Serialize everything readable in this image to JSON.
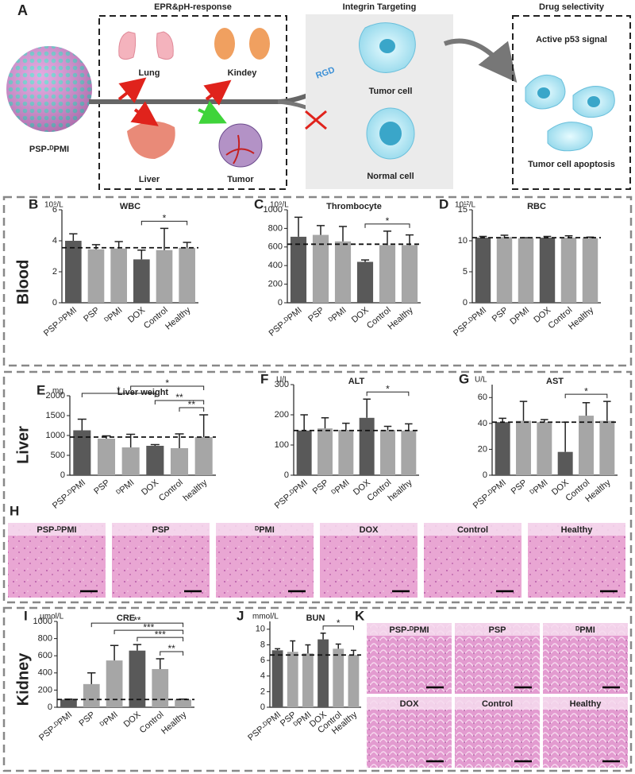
{
  "panel_a": {
    "letter": "A",
    "nanoparticle": "PSP-ᴰPMI",
    "boxes": [
      {
        "title": "EPR&pH-response",
        "labels": [
          "Lung",
          "Kindey",
          "Liver",
          "Tumor"
        ]
      },
      {
        "title": "Integrin Targeting",
        "labels": [
          "RGD",
          "Tumor cell",
          "Normal cell"
        ]
      },
      {
        "title": "Drug selectivity",
        "labels": [
          "Active p53 signal",
          "Tumor cell apoptosis"
        ]
      }
    ]
  },
  "sections": [
    "Blood",
    "Liver",
    "Kidney"
  ],
  "chart_data": [
    {
      "type": "bar",
      "letter": "B",
      "title": "WBC",
      "unit": "10⁹/L",
      "categories": [
        "PSP-ᴰPMI",
        "PSP",
        "ᴰPMI",
        "DOX",
        "Control",
        "Healthy"
      ],
      "values": [
        4.0,
        3.45,
        3.5,
        2.8,
        3.4,
        3.55
      ],
      "errors": [
        0.45,
        0.3,
        0.45,
        0.6,
        1.4,
        0.35
      ],
      "colors": [
        "#595959",
        "#a6a6a6",
        "#a6a6a6",
        "#595959",
        "#a6a6a6",
        "#a6a6a6"
      ],
      "reference": 3.55,
      "ylim": [
        0,
        6
      ],
      "yticks": [
        0,
        2,
        4,
        6
      ],
      "significance": [
        {
          "between": [
            "DOX",
            "Healthy"
          ],
          "label": "*"
        }
      ]
    },
    {
      "type": "bar",
      "letter": "C",
      "title": "Thrombocyte",
      "unit": "10⁹/L",
      "categories": [
        "PSP-ᴰPMI",
        "PSP",
        "ᴰPMI",
        "DOX",
        "Control",
        "Healthy"
      ],
      "values": [
        710,
        730,
        660,
        440,
        620,
        620
      ],
      "errors": [
        210,
        100,
        160,
        20,
        150,
        110
      ],
      "colors": [
        "#595959",
        "#a6a6a6",
        "#a6a6a6",
        "#595959",
        "#a6a6a6",
        "#a6a6a6"
      ],
      "reference": 630,
      "ylim": [
        0,
        1000
      ],
      "yticks": [
        0,
        200,
        400,
        600,
        800,
        1000
      ],
      "significance": [
        {
          "between": [
            "DOX",
            "Healthy"
          ],
          "label": "*"
        }
      ]
    },
    {
      "type": "bar",
      "letter": "D",
      "title": "RBC",
      "unit": "10¹²/L",
      "categories": [
        "PSP-ᴰPMI",
        "PSP",
        "DPMI",
        "DOX",
        "Control",
        "Healthy"
      ],
      "values": [
        10.5,
        10.6,
        10.4,
        10.5,
        10.5,
        10.4
      ],
      "errors": [
        0.2,
        0.3,
        0.1,
        0.2,
        0.3,
        0.2
      ],
      "colors": [
        "#595959",
        "#a6a6a6",
        "#a6a6a6",
        "#595959",
        "#a6a6a6",
        "#a6a6a6"
      ],
      "reference": 10.5,
      "ylim": [
        0,
        15
      ],
      "yticks": [
        0,
        5,
        10,
        15
      ],
      "significance": []
    },
    {
      "type": "bar",
      "letter": "E",
      "title": "Liver weight",
      "unit": "mg",
      "categories": [
        "PSP-ᴰPMI",
        "PSP",
        "ᴰPMI",
        "DOX",
        "Control",
        "healthy"
      ],
      "values": [
        1130,
        920,
        700,
        740,
        680,
        960
      ],
      "errors": [
        280,
        70,
        330,
        30,
        360,
        560
      ],
      "colors": [
        "#595959",
        "#a6a6a6",
        "#a6a6a6",
        "#595959",
        "#a6a6a6",
        "#a6a6a6"
      ],
      "reference": 960,
      "ylim": [
        0,
        2000
      ],
      "yticks": [
        0,
        500,
        1000,
        1500,
        2000
      ],
      "significance": [
        {
          "between": [
            "PSP-ᴰPMI",
            "DOX"
          ],
          "label": "*"
        },
        {
          "between": [
            "ᴰPMI",
            "healthy"
          ],
          "label": "*"
        },
        {
          "between": [
            "DOX",
            "healthy"
          ],
          "label": "**"
        },
        {
          "between": [
            "Control",
            "healthy"
          ],
          "label": "**"
        }
      ]
    },
    {
      "type": "bar",
      "letter": "F",
      "title": "ALT",
      "unit": "U/L",
      "categories": [
        "PSP-ᴰPMI",
        "PSP",
        "ᴰPMI",
        "DOX",
        "Control",
        "healthy"
      ],
      "values": [
        148,
        155,
        150,
        190,
        150,
        148
      ],
      "errors": [
        52,
        35,
        22,
        62,
        12,
        22
      ],
      "colors": [
        "#595959",
        "#a6a6a6",
        "#a6a6a6",
        "#595959",
        "#a6a6a6",
        "#a6a6a6"
      ],
      "reference": 148,
      "ylim": [
        0,
        300
      ],
      "yticks": [
        0,
        100,
        200,
        300
      ],
      "significance": [
        {
          "between": [
            "DOX",
            "healthy"
          ],
          "label": "*"
        }
      ]
    },
    {
      "type": "bar",
      "letter": "G",
      "title": "AST",
      "unit": "U/L",
      "categories": [
        "PSP-ᴰPMI",
        "PSP",
        "ᴰPMI",
        "DOX",
        "Control",
        "Healthy"
      ],
      "values": [
        41,
        42,
        41,
        18,
        46,
        42
      ],
      "errors": [
        3,
        15,
        2,
        23,
        10,
        15
      ],
      "colors": [
        "#595959",
        "#a6a6a6",
        "#a6a6a6",
        "#595959",
        "#a6a6a6",
        "#a6a6a6"
      ],
      "reference": 41,
      "ylim": [
        0,
        70
      ],
      "yticks": [
        0,
        20,
        40,
        60
      ],
      "significance": [
        {
          "between": [
            "DOX",
            "Healthy"
          ],
          "label": "*"
        }
      ]
    },
    {
      "type": "bar",
      "letter": "I",
      "title": "CRE",
      "unit": "μmol/L",
      "categories": [
        "PSP-ᴰPMI",
        "PSP",
        "ᴰPMI",
        "DOX",
        "Control",
        "Healthy"
      ],
      "values": [
        90,
        270,
        545,
        660,
        445,
        90
      ],
      "errors": [
        5,
        130,
        175,
        70,
        120,
        5
      ],
      "colors": [
        "#595959",
        "#a6a6a6",
        "#a6a6a6",
        "#595959",
        "#a6a6a6",
        "#a6a6a6"
      ],
      "reference": 90,
      "ylim": [
        0,
        1000
      ],
      "yticks": [
        0,
        200,
        400,
        600,
        800,
        1000
      ],
      "significance": [
        {
          "between": [
            "PSP",
            "Healthy"
          ],
          "label": "**"
        },
        {
          "between": [
            "ᴰPMI",
            "Healthy"
          ],
          "label": "***"
        },
        {
          "between": [
            "DOX",
            "Healthy"
          ],
          "label": "***"
        },
        {
          "between": [
            "Control",
            "Healthy"
          ],
          "label": "**"
        }
      ]
    },
    {
      "type": "bar",
      "letter": "J",
      "title": "BUN",
      "unit": "mmol/L",
      "categories": [
        "PSP-ᴰPMI",
        "PSP",
        "ᴰPMI",
        "DOX",
        "Control",
        "Healthy"
      ],
      "values": [
        7.3,
        7.1,
        6.9,
        8.7,
        7.5,
        6.7
      ],
      "errors": [
        0.2,
        1.4,
        1.1,
        0.8,
        0.6,
        0.6
      ],
      "colors": [
        "#595959",
        "#a6a6a6",
        "#a6a6a6",
        "#595959",
        "#a6a6a6",
        "#a6a6a6"
      ],
      "reference": 6.7,
      "ylim": [
        0,
        11
      ],
      "yticks": [
        0,
        2,
        4,
        6,
        8,
        10
      ],
      "significance": [
        {
          "between": [
            "DOX",
            "Healthy"
          ],
          "label": "*"
        }
      ]
    }
  ],
  "histology": [
    {
      "letter": "H",
      "labels": [
        "PSP-ᴰPMI",
        "PSP",
        "ᴰPMI",
        "DOX",
        "Control",
        "Healthy"
      ]
    },
    {
      "letter": "K",
      "labels": [
        "PSP-ᴰPMI",
        "PSP",
        "ᴰPMI",
        "DOX",
        "Control",
        "Healthy"
      ]
    }
  ]
}
